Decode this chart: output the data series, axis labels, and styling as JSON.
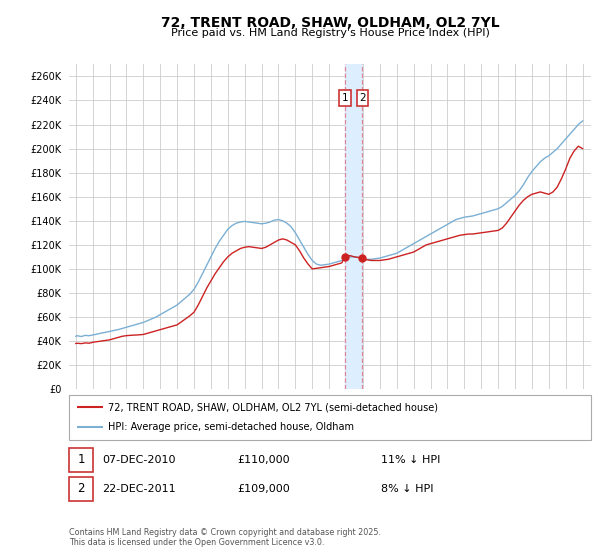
{
  "title": "72, TRENT ROAD, SHAW, OLDHAM, OL2 7YL",
  "subtitle": "Price paid vs. HM Land Registry's House Price Index (HPI)",
  "ylim": [
    0,
    270000
  ],
  "yticks": [
    0,
    20000,
    40000,
    60000,
    80000,
    100000,
    120000,
    140000,
    160000,
    180000,
    200000,
    220000,
    240000,
    260000
  ],
  "legend_label1": "72, TRENT ROAD, SHAW, OLDHAM, OL2 7YL (semi-detached house)",
  "legend_label2": "HPI: Average price, semi-detached house, Oldham",
  "footer": "Contains HM Land Registry data © Crown copyright and database right 2025.\nThis data is licensed under the Open Government Licence v3.0.",
  "sale1_date": "07-DEC-2010",
  "sale1_price": "£110,000",
  "sale1_hpi": "11% ↓ HPI",
  "sale2_date": "22-DEC-2011",
  "sale2_price": "£109,000",
  "sale2_hpi": "8% ↓ HPI",
  "vline_x1": 2010.92,
  "vline_x2": 2011.97,
  "line_color_red": "#cc2222",
  "line_color_blue": "#7bafd4",
  "grid_color": "#cccccc",
  "background_color": "#ffffff",
  "vspan_color": "#ddeeff",
  "vline_color": "#dd8899",
  "marker_color": "#cc2222",
  "box_edge_color": "#cc3333",
  "hpi_x": [
    1995.0,
    1995.08,
    1995.17,
    1995.25,
    1995.33,
    1995.42,
    1995.5,
    1995.58,
    1995.67,
    1995.75,
    1995.83,
    1995.92,
    1996.0,
    1996.08,
    1996.17,
    1996.25,
    1996.33,
    1996.42,
    1996.5,
    1996.58,
    1996.67,
    1996.75,
    1996.83,
    1996.92,
    1997.0,
    1997.25,
    1997.5,
    1997.75,
    1998.0,
    1998.25,
    1998.5,
    1998.75,
    1999.0,
    1999.25,
    1999.5,
    1999.75,
    2000.0,
    2000.25,
    2000.5,
    2000.75,
    2001.0,
    2001.25,
    2001.5,
    2001.75,
    2002.0,
    2002.25,
    2002.5,
    2002.75,
    2003.0,
    2003.25,
    2003.5,
    2003.75,
    2004.0,
    2004.25,
    2004.5,
    2004.75,
    2005.0,
    2005.25,
    2005.5,
    2005.75,
    2006.0,
    2006.25,
    2006.5,
    2006.75,
    2007.0,
    2007.25,
    2007.5,
    2007.75,
    2008.0,
    2008.25,
    2008.5,
    2008.75,
    2009.0,
    2009.25,
    2009.5,
    2009.75,
    2010.0,
    2010.25,
    2010.5,
    2010.75,
    2010.92,
    2011.0,
    2011.25,
    2011.5,
    2011.75,
    2011.97,
    2012.0,
    2012.25,
    2012.5,
    2012.75,
    2013.0,
    2013.25,
    2013.5,
    2013.75,
    2014.0,
    2014.25,
    2014.5,
    2014.75,
    2015.0,
    2015.25,
    2015.5,
    2015.75,
    2016.0,
    2016.25,
    2016.5,
    2016.75,
    2017.0,
    2017.25,
    2017.5,
    2017.75,
    2018.0,
    2018.25,
    2018.5,
    2018.75,
    2019.0,
    2019.25,
    2019.5,
    2019.75,
    2020.0,
    2020.25,
    2020.5,
    2020.75,
    2021.0,
    2021.25,
    2021.5,
    2021.75,
    2022.0,
    2022.25,
    2022.5,
    2022.75,
    2023.0,
    2023.25,
    2023.5,
    2023.75,
    2024.0,
    2024.25,
    2024.5,
    2024.75,
    2025.0
  ],
  "hpi_y": [
    44000,
    44500,
    44200,
    44000,
    43800,
    44200,
    44500,
    44800,
    44600,
    44400,
    44600,
    44800,
    45000,
    45200,
    45500,
    45800,
    46000,
    46300,
    46600,
    46800,
    47000,
    47200,
    47500,
    47800,
    48000,
    48800,
    49500,
    50500,
    51500,
    52500,
    53500,
    54500,
    55500,
    57000,
    58500,
    60000,
    62000,
    64000,
    66000,
    68000,
    70000,
    73000,
    76000,
    79000,
    83000,
    89000,
    96000,
    103000,
    110000,
    117000,
    123000,
    128000,
    133000,
    136000,
    138000,
    139000,
    139500,
    139000,
    138500,
    138000,
    137500,
    138000,
    139000,
    140500,
    141000,
    140000,
    138000,
    135000,
    130000,
    124000,
    118000,
    112000,
    107000,
    104000,
    103000,
    103500,
    104000,
    105000,
    106000,
    107000,
    108000,
    109000,
    110000,
    110000,
    109500,
    109000,
    108500,
    108000,
    108000,
    108500,
    109000,
    110000,
    111000,
    112000,
    113000,
    115000,
    117000,
    119000,
    121000,
    123000,
    125000,
    127000,
    129000,
    131000,
    133000,
    135000,
    137000,
    139000,
    141000,
    142000,
    143000,
    143500,
    144000,
    145000,
    146000,
    147000,
    148000,
    149000,
    150000,
    152000,
    155000,
    158000,
    161000,
    165000,
    170000,
    176000,
    181000,
    185000,
    189000,
    192000,
    194000,
    197000,
    200000,
    204000,
    208000,
    212000,
    216000,
    220000,
    223000
  ],
  "price_x": [
    1995.0,
    1995.08,
    1995.17,
    1995.25,
    1995.33,
    1995.42,
    1995.5,
    1995.58,
    1995.67,
    1995.75,
    1995.83,
    1995.92,
    1996.0,
    1996.25,
    1996.5,
    1996.75,
    1997.0,
    1997.25,
    1997.5,
    1997.75,
    1998.0,
    1998.25,
    1998.5,
    1998.75,
    1999.0,
    1999.25,
    1999.5,
    1999.75,
    2000.0,
    2000.25,
    2000.5,
    2000.75,
    2001.0,
    2001.25,
    2001.5,
    2001.75,
    2002.0,
    2002.25,
    2002.5,
    2002.75,
    2003.0,
    2003.25,
    2003.5,
    2003.75,
    2004.0,
    2004.25,
    2004.5,
    2004.75,
    2005.0,
    2005.25,
    2005.5,
    2005.75,
    2006.0,
    2006.25,
    2006.5,
    2006.75,
    2007.0,
    2007.25,
    2007.5,
    2007.75,
    2008.0,
    2008.25,
    2008.5,
    2008.75,
    2009.0,
    2009.25,
    2009.5,
    2009.75,
    2010.0,
    2010.25,
    2010.5,
    2010.75,
    2010.92,
    2011.0,
    2011.25,
    2011.5,
    2011.75,
    2011.97,
    2012.0,
    2012.25,
    2012.5,
    2012.75,
    2013.0,
    2013.25,
    2013.5,
    2013.75,
    2014.0,
    2014.25,
    2014.5,
    2014.75,
    2015.0,
    2015.25,
    2015.5,
    2015.75,
    2016.0,
    2016.25,
    2016.5,
    2016.75,
    2017.0,
    2017.25,
    2017.5,
    2017.75,
    2018.0,
    2018.25,
    2018.5,
    2018.75,
    2019.0,
    2019.25,
    2019.5,
    2019.75,
    2020.0,
    2020.25,
    2020.5,
    2020.75,
    2021.0,
    2021.25,
    2021.5,
    2021.75,
    2022.0,
    2022.25,
    2022.5,
    2022.75,
    2023.0,
    2023.25,
    2023.5,
    2023.75,
    2024.0,
    2024.25,
    2024.5,
    2024.75,
    2025.0
  ],
  "price_y": [
    38000,
    38200,
    38100,
    38000,
    37900,
    38100,
    38300,
    38500,
    38400,
    38200,
    38400,
    38600,
    39000,
    39500,
    40000,
    40500,
    41000,
    42000,
    43000,
    44000,
    44500,
    44800,
    45000,
    45200,
    45500,
    46500,
    47500,
    48500,
    49500,
    50500,
    51500,
    52500,
    53500,
    56000,
    58500,
    61000,
    64000,
    70000,
    77000,
    84000,
    90000,
    96000,
    101000,
    106000,
    110000,
    113000,
    115000,
    117000,
    118000,
    118500,
    118000,
    117500,
    117000,
    118000,
    120000,
    122000,
    124000,
    125000,
    124000,
    122000,
    120000,
    115000,
    109000,
    104000,
    100000,
    100500,
    101000,
    101500,
    102000,
    103000,
    104000,
    105000,
    110000,
    111000,
    111000,
    110000,
    109500,
    109000,
    108000,
    107500,
    107000,
    107000,
    107000,
    107500,
    108000,
    109000,
    110000,
    111000,
    112000,
    113000,
    114000,
    116000,
    118000,
    120000,
    121000,
    122000,
    123000,
    124000,
    125000,
    126000,
    127000,
    128000,
    128500,
    129000,
    129000,
    129500,
    130000,
    130500,
    131000,
    131500,
    132000,
    134000,
    138000,
    143000,
    148000,
    153000,
    157000,
    160000,
    162000,
    163000,
    164000,
    163000,
    162000,
    164000,
    168000,
    175000,
    183000,
    192000,
    198000,
    202000,
    200000
  ]
}
